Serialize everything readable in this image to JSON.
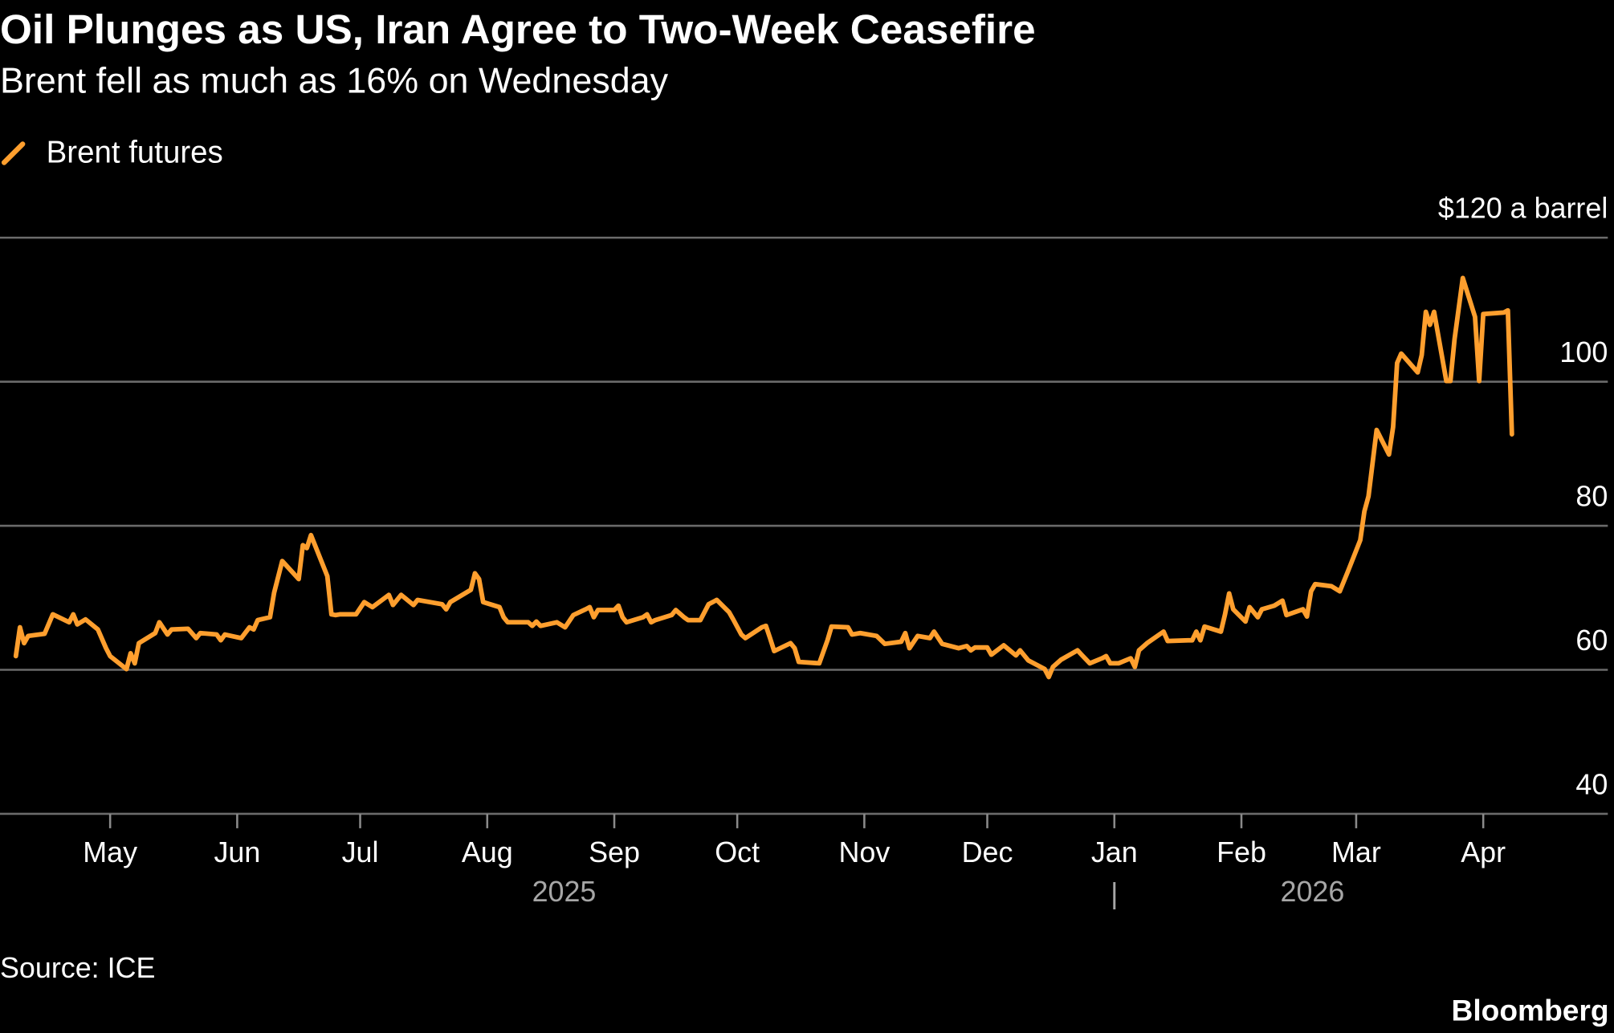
{
  "title": "Oil Plunges as US, Iran Agree to Two-Week Ceasefire",
  "subtitle": "Brent fell as much as 16% on Wednesday",
  "source": "Source: ICE",
  "logo": "Bloomberg",
  "chart_data": {
    "type": "line",
    "title": "Oil Plunges as US, Iran Agree to Two-Week Ceasefire",
    "subtitle": "Brent fell as much as 16% on Wednesday",
    "legend": {
      "position": "top-left",
      "entries": [
        "Brent futures"
      ]
    },
    "colors": {
      "Brent futures": "#ff9f2e",
      "grid": "#6b6b6b",
      "background": "#000000"
    },
    "grid": true,
    "ylim": [
      40,
      120
    ],
    "y_ticks": [
      {
        "value": 120,
        "label": "$120 a barrel"
      },
      {
        "value": 100,
        "label": "100"
      },
      {
        "value": 80,
        "label": "80"
      },
      {
        "value": 60,
        "label": "60"
      },
      {
        "value": 40,
        "label": "40"
      }
    ],
    "y_axis_side": "right",
    "x_ticks": [
      {
        "date": "2025-05-01",
        "label": "May"
      },
      {
        "date": "2025-06-01",
        "label": "Jun"
      },
      {
        "date": "2025-07-01",
        "label": "Jul"
      },
      {
        "date": "2025-08-01",
        "label": "Aug"
      },
      {
        "date": "2025-09-01",
        "label": "Sep"
      },
      {
        "date": "2025-10-01",
        "label": "Oct"
      },
      {
        "date": "2025-11-01",
        "label": "Nov"
      },
      {
        "date": "2025-12-01",
        "label": "Dec"
      },
      {
        "date": "2026-01-01",
        "label": "Jan"
      },
      {
        "date": "2026-02-01",
        "label": "Feb"
      },
      {
        "date": "2026-03-01",
        "label": "Mar"
      },
      {
        "date": "2026-04-01",
        "label": "Apr"
      }
    ],
    "year_labels": [
      {
        "label": "2025",
        "date": "2025-09-01"
      },
      {
        "label": "2026",
        "date": "2026-02-15"
      }
    ],
    "year_separator": {
      "label": "|",
      "date": "2026-01-01"
    },
    "xlim": [
      "2025-04-08",
      "2026-04-08"
    ],
    "series": [
      {
        "name": "Brent futures",
        "points": [
          [
            "2025-04-08",
            61.9
          ],
          [
            "2025-04-09",
            65.9
          ],
          [
            "2025-04-10",
            63.7
          ],
          [
            "2025-04-11",
            64.7
          ],
          [
            "2025-04-15",
            65.0
          ],
          [
            "2025-04-17",
            67.7
          ],
          [
            "2025-04-21",
            66.6
          ],
          [
            "2025-04-22",
            67.7
          ],
          [
            "2025-04-23",
            66.3
          ],
          [
            "2025-04-25",
            67.0
          ],
          [
            "2025-04-28",
            65.6
          ],
          [
            "2025-04-30",
            63.0
          ],
          [
            "2025-05-01",
            61.9
          ],
          [
            "2025-05-05",
            60.1
          ],
          [
            "2025-05-06",
            62.3
          ],
          [
            "2025-05-07",
            60.9
          ],
          [
            "2025-05-08",
            63.7
          ],
          [
            "2025-05-12",
            65.1
          ],
          [
            "2025-05-13",
            66.6
          ],
          [
            "2025-05-15",
            64.9
          ],
          [
            "2025-05-16",
            65.6
          ],
          [
            "2025-05-20",
            65.7
          ],
          [
            "2025-05-22",
            64.4
          ],
          [
            "2025-05-23",
            65.1
          ],
          [
            "2025-05-27",
            64.9
          ],
          [
            "2025-05-28",
            64.1
          ],
          [
            "2025-05-29",
            64.9
          ],
          [
            "2025-06-02",
            64.4
          ],
          [
            "2025-06-04",
            65.9
          ],
          [
            "2025-06-05",
            65.6
          ],
          [
            "2025-06-06",
            66.9
          ],
          [
            "2025-06-09",
            67.3
          ],
          [
            "2025-06-10",
            70.7
          ],
          [
            "2025-06-12",
            75.1
          ],
          [
            "2025-06-16",
            72.6
          ],
          [
            "2025-06-17",
            77.3
          ],
          [
            "2025-06-18",
            76.9
          ],
          [
            "2025-06-19",
            78.7
          ],
          [
            "2025-06-23",
            73.0
          ],
          [
            "2025-06-24",
            67.7
          ],
          [
            "2025-06-25",
            67.6
          ],
          [
            "2025-06-26",
            67.7
          ],
          [
            "2025-06-30",
            67.7
          ],
          [
            "2025-07-02",
            69.4
          ],
          [
            "2025-07-04",
            68.7
          ],
          [
            "2025-07-08",
            70.4
          ],
          [
            "2025-07-09",
            69.0
          ],
          [
            "2025-07-11",
            70.4
          ],
          [
            "2025-07-14",
            69.0
          ],
          [
            "2025-07-15",
            69.7
          ],
          [
            "2025-07-21",
            69.1
          ],
          [
            "2025-07-22",
            68.4
          ],
          [
            "2025-07-23",
            69.4
          ],
          [
            "2025-07-28",
            71.1
          ],
          [
            "2025-07-29",
            73.4
          ],
          [
            "2025-07-30",
            72.6
          ],
          [
            "2025-07-31",
            69.4
          ],
          [
            "2025-08-04",
            68.7
          ],
          [
            "2025-08-05",
            67.3
          ],
          [
            "2025-08-06",
            66.6
          ],
          [
            "2025-08-11",
            66.6
          ],
          [
            "2025-08-12",
            66.1
          ],
          [
            "2025-08-13",
            66.7
          ],
          [
            "2025-08-14",
            66.1
          ],
          [
            "2025-08-18",
            66.6
          ],
          [
            "2025-08-20",
            65.9
          ],
          [
            "2025-08-22",
            67.6
          ],
          [
            "2025-08-25",
            68.4
          ],
          [
            "2025-08-26",
            68.7
          ],
          [
            "2025-08-27",
            67.3
          ],
          [
            "2025-08-28",
            68.3
          ],
          [
            "2025-09-01",
            68.3
          ],
          [
            "2025-09-02",
            68.9
          ],
          [
            "2025-09-03",
            67.3
          ],
          [
            "2025-09-04",
            66.6
          ],
          [
            "2025-09-08",
            67.3
          ],
          [
            "2025-09-09",
            67.7
          ],
          [
            "2025-09-10",
            66.6
          ],
          [
            "2025-09-11",
            66.9
          ],
          [
            "2025-09-15",
            67.6
          ],
          [
            "2025-09-16",
            68.3
          ],
          [
            "2025-09-18",
            67.3
          ],
          [
            "2025-09-19",
            66.9
          ],
          [
            "2025-09-22",
            66.9
          ],
          [
            "2025-09-24",
            69.1
          ],
          [
            "2025-09-26",
            69.7
          ],
          [
            "2025-09-29",
            68.0
          ],
          [
            "2025-09-30",
            67.0
          ],
          [
            "2025-10-02",
            64.9
          ],
          [
            "2025-10-03",
            64.4
          ],
          [
            "2025-10-07",
            65.9
          ],
          [
            "2025-10-08",
            66.1
          ],
          [
            "2025-10-09",
            64.4
          ],
          [
            "2025-10-10",
            62.6
          ],
          [
            "2025-10-14",
            63.7
          ],
          [
            "2025-10-15",
            63.0
          ],
          [
            "2025-10-16",
            61.1
          ],
          [
            "2025-10-21",
            60.9
          ],
          [
            "2025-10-23",
            64.1
          ],
          [
            "2025-10-24",
            66.0
          ],
          [
            "2025-10-28",
            65.9
          ],
          [
            "2025-10-29",
            64.9
          ],
          [
            "2025-10-31",
            65.1
          ],
          [
            "2025-11-04",
            64.7
          ],
          [
            "2025-11-06",
            63.6
          ],
          [
            "2025-11-10",
            63.9
          ],
          [
            "2025-11-11",
            65.1
          ],
          [
            "2025-11-12",
            63.0
          ],
          [
            "2025-11-14",
            64.7
          ],
          [
            "2025-11-17",
            64.4
          ],
          [
            "2025-11-18",
            65.3
          ],
          [
            "2025-11-20",
            63.6
          ],
          [
            "2025-11-24",
            63.0
          ],
          [
            "2025-11-26",
            63.3
          ],
          [
            "2025-11-27",
            62.7
          ],
          [
            "2025-11-28",
            63.1
          ],
          [
            "2025-12-01",
            63.1
          ],
          [
            "2025-12-02",
            62.1
          ],
          [
            "2025-12-05",
            63.4
          ],
          [
            "2025-12-08",
            62.0
          ],
          [
            "2025-12-09",
            62.7
          ],
          [
            "2025-12-11",
            61.3
          ],
          [
            "2025-12-15",
            60.1
          ],
          [
            "2025-12-16",
            59.0
          ],
          [
            "2025-12-17",
            60.4
          ],
          [
            "2025-12-19",
            61.4
          ],
          [
            "2025-12-23",
            62.7
          ],
          [
            "2025-12-24",
            62.1
          ],
          [
            "2025-12-26",
            60.9
          ],
          [
            "2025-12-29",
            61.6
          ],
          [
            "2025-12-30",
            61.9
          ],
          [
            "2025-12-31",
            60.9
          ],
          [
            "2026-01-02",
            60.9
          ],
          [
            "2026-01-05",
            61.6
          ],
          [
            "2026-01-06",
            60.4
          ],
          [
            "2026-01-07",
            62.7
          ],
          [
            "2026-01-09",
            63.7
          ],
          [
            "2026-01-12",
            64.9
          ],
          [
            "2026-01-13",
            65.3
          ],
          [
            "2026-01-14",
            64.0
          ],
          [
            "2026-01-19",
            64.1
          ],
          [
            "2026-01-20",
            64.1
          ],
          [
            "2026-01-21",
            65.3
          ],
          [
            "2026-01-22",
            64.1
          ],
          [
            "2026-01-23",
            66.0
          ],
          [
            "2026-01-27",
            65.3
          ],
          [
            "2026-01-28",
            67.7
          ],
          [
            "2026-01-29",
            70.6
          ],
          [
            "2026-01-30",
            68.4
          ],
          [
            "2026-02-02",
            66.7
          ],
          [
            "2026-02-03",
            68.7
          ],
          [
            "2026-02-05",
            67.3
          ],
          [
            "2026-02-06",
            68.4
          ],
          [
            "2026-02-09",
            68.9
          ],
          [
            "2026-02-11",
            69.6
          ],
          [
            "2026-02-12",
            67.6
          ],
          [
            "2026-02-16",
            68.4
          ],
          [
            "2026-02-17",
            67.4
          ],
          [
            "2026-02-18",
            70.9
          ],
          [
            "2026-02-19",
            71.9
          ],
          [
            "2026-02-23",
            71.6
          ],
          [
            "2026-02-25",
            70.9
          ],
          [
            "2026-02-27",
            73.7
          ],
          [
            "2026-03-02",
            78.0
          ],
          [
            "2026-03-03",
            82.0
          ],
          [
            "2026-03-04",
            84.1
          ],
          [
            "2026-03-06",
            93.3
          ],
          [
            "2026-03-09",
            89.9
          ],
          [
            "2026-03-10",
            93.7
          ],
          [
            "2026-03-11",
            102.6
          ],
          [
            "2026-03-12",
            103.9
          ],
          [
            "2026-03-16",
            101.3
          ],
          [
            "2026-03-17",
            103.7
          ],
          [
            "2026-03-18",
            109.7
          ],
          [
            "2026-03-19",
            107.9
          ],
          [
            "2026-03-20",
            109.7
          ],
          [
            "2026-03-23",
            100.1
          ],
          [
            "2026-03-24",
            100.1
          ],
          [
            "2026-03-25",
            105.9
          ],
          [
            "2026-03-27",
            114.4
          ],
          [
            "2026-03-30",
            109.0
          ],
          [
            "2026-03-31",
            100.1
          ],
          [
            "2026-04-01",
            109.4
          ],
          [
            "2026-04-06",
            109.6
          ],
          [
            "2026-04-07",
            109.9
          ],
          [
            "2026-04-08",
            92.7
          ]
        ]
      }
    ]
  }
}
